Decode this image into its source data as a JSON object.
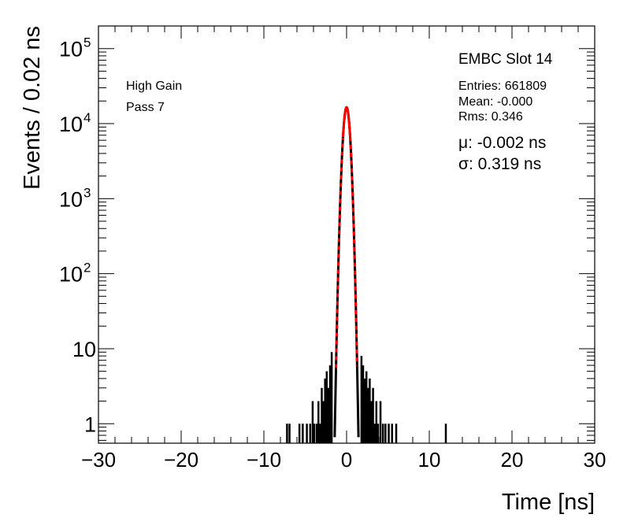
{
  "chart_data": {
    "type": "histogram",
    "title": "EMBC Slot 14",
    "xlabel": "Time [ns]",
    "ylabel": "Events / 0.02 ns",
    "xlim": [
      -30,
      30
    ],
    "ylim": [
      0.55,
      200000
    ],
    "log_y": true,
    "grid": false,
    "bin_width_ns": 0.02,
    "x_ticks": [
      "−30",
      "−20",
      "−10",
      "0",
      "10",
      "20",
      "30"
    ],
    "y_ticks": [
      {
        "value": 1,
        "label": "1"
      },
      {
        "value": 10,
        "label": "10"
      },
      {
        "value": 100,
        "label": "10",
        "sup": "2"
      },
      {
        "value": 1000,
        "label": "10",
        "sup": "3"
      },
      {
        "value": 10000,
        "label": "10",
        "sup": "4"
      },
      {
        "value": 100000,
        "label": "10",
        "sup": "5"
      }
    ],
    "annotations": {
      "gain": "High Gain",
      "pass": "Pass 7",
      "entries": "Entries: 661809",
      "mean": "Mean: -0.000",
      "rms": "Rms: 0.346",
      "mu": "μ: -0.002 ns",
      "sigma": "σ: 0.319 ns"
    },
    "fit": {
      "type": "gaussian",
      "mu": -0.002,
      "sigma": 0.319,
      "peak": 16500,
      "color": "#ff0000",
      "solid_range_sigma": 1.0,
      "dashed_range_sigma": 4.0
    },
    "histogram": {
      "color": "#000000",
      "peak_x": 0.0,
      "peak_value": 16500,
      "sigma": 0.32,
      "tail_bins": [
        {
          "x": -7.2,
          "y": 1
        },
        {
          "x": -6.9,
          "y": 1
        },
        {
          "x": -5.7,
          "y": 1
        },
        {
          "x": -5.3,
          "y": 1
        },
        {
          "x": -4.8,
          "y": 1
        },
        {
          "x": -4.4,
          "y": 1
        },
        {
          "x": -4.1,
          "y": 2
        },
        {
          "x": -3.9,
          "y": 1
        },
        {
          "x": -3.6,
          "y": 1
        },
        {
          "x": -3.4,
          "y": 2
        },
        {
          "x": -3.2,
          "y": 1
        },
        {
          "x": -3.0,
          "y": 3
        },
        {
          "x": -2.8,
          "y": 2
        },
        {
          "x": -2.6,
          "y": 4
        },
        {
          "x": -2.4,
          "y": 5
        },
        {
          "x": -2.2,
          "y": 3
        },
        {
          "x": -2.0,
          "y": 6
        },
        {
          "x": -1.8,
          "y": 9
        },
        {
          "x": 1.8,
          "y": 8
        },
        {
          "x": 2.0,
          "y": 6
        },
        {
          "x": 2.2,
          "y": 4
        },
        {
          "x": 2.4,
          "y": 5
        },
        {
          "x": 2.6,
          "y": 3
        },
        {
          "x": 2.8,
          "y": 4
        },
        {
          "x": 3.0,
          "y": 2
        },
        {
          "x": 3.2,
          "y": 3
        },
        {
          "x": 3.4,
          "y": 1
        },
        {
          "x": 3.6,
          "y": 2
        },
        {
          "x": 3.8,
          "y": 1
        },
        {
          "x": 4.1,
          "y": 2
        },
        {
          "x": 4.4,
          "y": 1
        },
        {
          "x": 4.7,
          "y": 1
        },
        {
          "x": 5.1,
          "y": 1
        },
        {
          "x": 5.5,
          "y": 1
        },
        {
          "x": 6.0,
          "y": 1
        },
        {
          "x": 12.0,
          "y": 1
        }
      ]
    }
  }
}
